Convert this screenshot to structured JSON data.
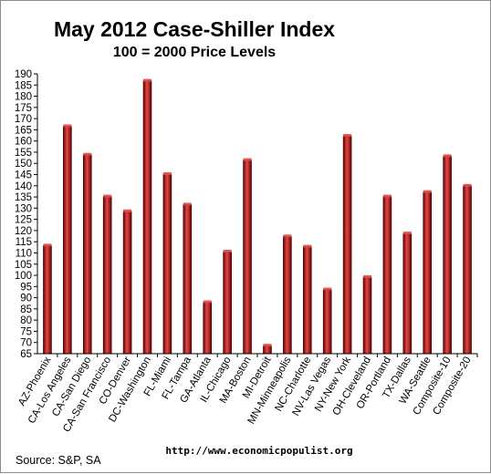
{
  "chart_data": {
    "type": "bar",
    "title": "May 2012 Case-Shiller Index",
    "subtitle": "100 = 2000 Price Levels",
    "source": "Source: S&P, SA",
    "website": "http://www.economicpopulist.org",
    "ylim": [
      65,
      190
    ],
    "ytick_step": 5,
    "grid": false,
    "legend": "none",
    "bar_color": "#b01414",
    "bar_dark": "#6a0000",
    "bar_light": "#e04848",
    "categories": [
      "AZ-Phoenix",
      "CA-Los Angeles",
      "CA-San Diego",
      "CA-San Francisco",
      "CO-Denver",
      "DC-Washington",
      "FL-Miami",
      "FL-Tampa",
      "GA-Atlanta",
      "IL-Chicago",
      "MA-Boston",
      "MI-Detroit",
      "MN-Minneapolis",
      "NC-Charlotte",
      "NV-Las Vegas",
      "NY-New York",
      "OH-Cleveland",
      "OR-Portland",
      "TX-Dallas",
      "WA-Seattle",
      "Composite-10",
      "Composite-20"
    ],
    "values": [
      113.3,
      166.6,
      153.9,
      135.2,
      128.6,
      186.9,
      145.2,
      131.6,
      88.0,
      110.6,
      151.5,
      68.6,
      117.4,
      112.8,
      93.7,
      162.3,
      99.2,
      135.2,
      118.7,
      137.2,
      153.2,
      140.0
    ]
  }
}
